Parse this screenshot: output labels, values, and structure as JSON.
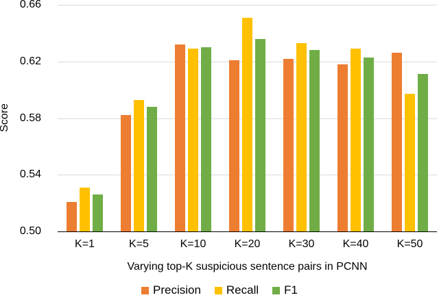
{
  "chart_data": {
    "type": "bar",
    "title": "",
    "xlabel": "Varying top-K suspicious sentence pairs in PCNN",
    "ylabel": "Score",
    "categories": [
      "K=1",
      "K=5",
      "K=10",
      "K=20",
      "K=30",
      "K=40",
      "K=50"
    ],
    "series": [
      {
        "name": "Precision",
        "color": "#ED7D31",
        "values": [
          0.521,
          0.582,
          0.632,
          0.621,
          0.622,
          0.618,
          0.626
        ]
      },
      {
        "name": "Recall",
        "color": "#FFC000",
        "values": [
          0.531,
          0.593,
          0.629,
          0.651,
          0.633,
          0.629,
          0.597
        ]
      },
      {
        "name": "F1",
        "color": "#70AD47",
        "values": [
          0.526,
          0.588,
          0.63,
          0.636,
          0.628,
          0.623,
          0.611
        ]
      }
    ],
    "ylim": [
      0.5,
      0.66
    ],
    "y_ticks": [
      0.5,
      0.54,
      0.58,
      0.62,
      0.66
    ],
    "y_tick_labels": [
      "0.50",
      "0.54",
      "0.58",
      "0.62",
      "0.66"
    ],
    "grid": true,
    "gridline_color": "#D9D9D9",
    "axis_line_color": "#000000",
    "legend_position": "bottom"
  }
}
